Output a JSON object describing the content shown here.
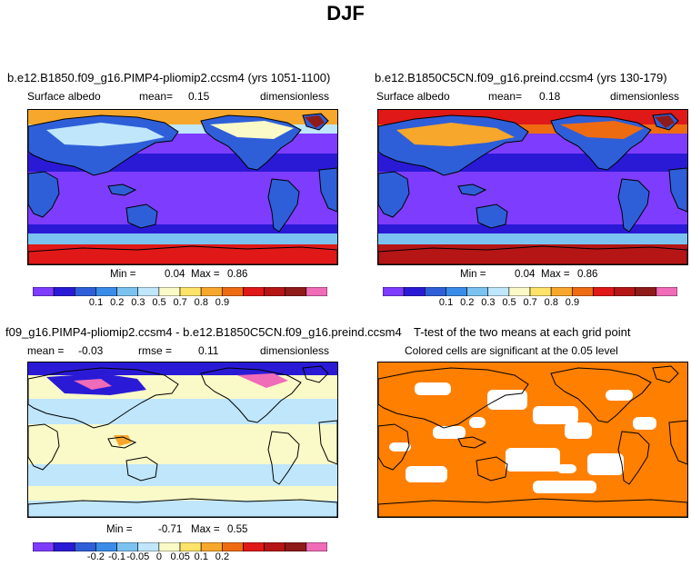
{
  "page": {
    "title": "DJF"
  },
  "panels": [
    {
      "title": "b.e12.B1850.f09_g16.PIMP4-pliomip2.ccsm4 (yrs 1051-1100)",
      "variable": "Surface albedo",
      "mean_label": "mean=",
      "mean_value": "0.15",
      "units": "dimensionless",
      "min_label": "Min =",
      "min_value": "0.04",
      "max_label": "Max =",
      "max_value": "0.86"
    },
    {
      "title": "b.e12.B1850C5CN.f09_g16.preind.ccsm4 (yrs 130-179)",
      "variable": "Surface albedo",
      "mean_label": "mean=",
      "mean_value": "0.18",
      "units": "dimensionless",
      "min_label": "Min =",
      "min_value": "0.04",
      "max_label": "Max =",
      "max_value": "0.86"
    },
    {
      "title": "f09_g16.PIMP4-pliomip2.ccsm4 - b.e12.B1850C5CN.f09_g16.preind.ccsm4",
      "mean_label": "mean =",
      "mean_value": "-0.03",
      "rmse_label": "rmse =",
      "rmse_value": "0.11",
      "units": "dimensionless",
      "min_label": "Min =",
      "min_value": "-0.71",
      "max_label": "Max =",
      "max_value": "0.55"
    },
    {
      "title": "T-test of the two means at each grid point",
      "subtitle": "Colored cells are significant at the 0.05 level"
    }
  ],
  "colors": {
    "albedo_scale": [
      "#7e3cff",
      "#2a1ad6",
      "#2f5fd8",
      "#3b8be8",
      "#7cc2f0",
      "#bfe6fb",
      "#fafac8",
      "#fde36a",
      "#f7a72c",
      "#ef6b12",
      "#e01818",
      "#b51515",
      "#8e1a1a",
      "#f06bb8"
    ],
    "diff_scale": [
      "#7e3cff",
      "#2a1ad6",
      "#2f5fd8",
      "#3b8be8",
      "#7cc2f0",
      "#bfe6fb",
      "#fafac8",
      "#fde36a",
      "#f7a72c",
      "#ef6b12",
      "#e01818",
      "#b51515",
      "#8e1a1a",
      "#f06bb8"
    ],
    "ttest": "#ff7f00"
  },
  "chart_data": [
    {
      "type": "heatmap",
      "title": "b.e12.B1850.f09_g16.PIMP4-pliomip2.ccsm4 (yrs 1051-1100)",
      "variable": "Surface albedo",
      "units": "dimensionless",
      "mean": 0.15,
      "min": 0.04,
      "max": 0.86,
      "colorbar_levels": [
        0.1,
        0.2,
        0.3,
        0.5,
        0.7,
        0.8,
        0.9
      ],
      "colorbar_labels": [
        "0.1",
        "0.2",
        "0.3",
        "0.5",
        "0.7",
        "0.8",
        "0.9"
      ]
    },
    {
      "type": "heatmap",
      "title": "b.e12.B1850C5CN.f09_g16.preind.ccsm4 (yrs 130-179)",
      "variable": "Surface albedo",
      "units": "dimensionless",
      "mean": 0.18,
      "min": 0.04,
      "max": 0.86,
      "colorbar_levels": [
        0.1,
        0.2,
        0.3,
        0.5,
        0.7,
        0.8,
        0.9
      ],
      "colorbar_labels": [
        "0.1",
        "0.2",
        "0.3",
        "0.5",
        "0.7",
        "0.8",
        "0.9"
      ]
    },
    {
      "type": "heatmap",
      "title": "f09_g16.PIMP4-pliomip2.ccsm4 - b.e12.B1850C5CN.f09_g16.preind.ccsm4",
      "units": "dimensionless",
      "mean": -0.03,
      "rmse": 0.11,
      "min": -0.71,
      "max": 0.55,
      "colorbar_levels": [
        -0.2,
        -0.1,
        -0.05,
        0,
        0.05,
        0.1,
        0.2
      ],
      "colorbar_labels": [
        "-0.2",
        "-0.1",
        "-0.05",
        "0",
        "0.05",
        "0.1",
        "0.2"
      ]
    },
    {
      "type": "heatmap",
      "title": "T-test of the two means at each grid point",
      "subtitle": "Colored cells are significant at the 0.05 level",
      "significance_level": 0.05
    }
  ]
}
